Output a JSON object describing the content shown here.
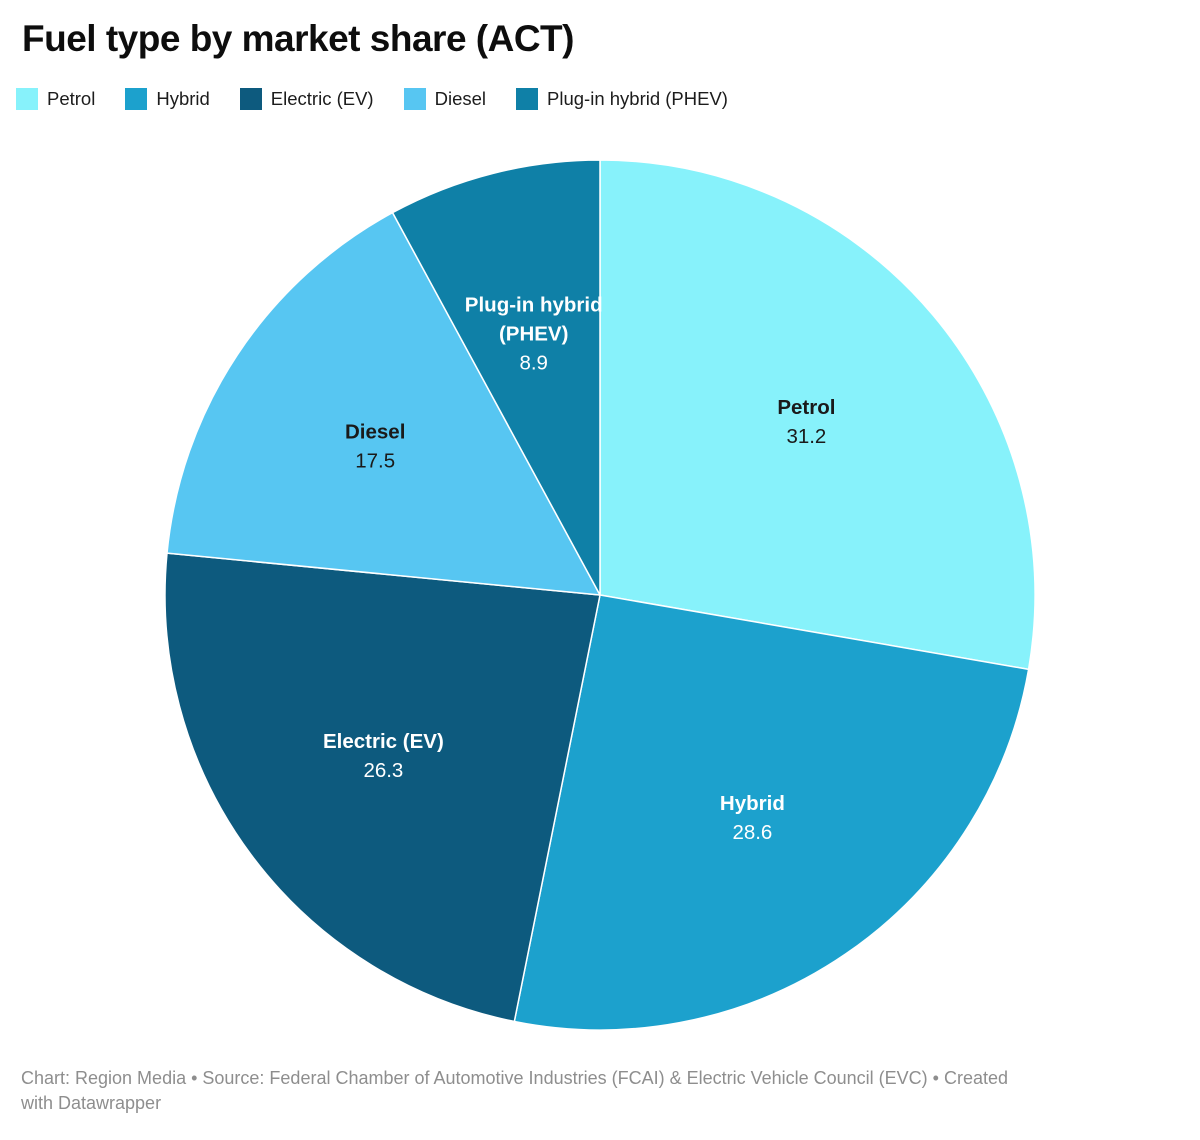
{
  "page": {
    "title": "Fuel type by market share (ACT)"
  },
  "chart_data": {
    "type": "pie",
    "title": "Fuel type by market share (ACT)",
    "legend_position": "top",
    "direction": "clockwise",
    "start_angle_deg": 0,
    "series": [
      {
        "label": "Petrol",
        "value": 31.2,
        "color": "#87F2FB",
        "label_lines": [
          "Petrol"
        ],
        "label_text_color": "#1a1a1a"
      },
      {
        "label": "Hybrid",
        "value": 28.6,
        "color": "#1CA1CD",
        "label_lines": [
          "Hybrid"
        ],
        "label_text_color": "#ffffff"
      },
      {
        "label": "Electric (EV)",
        "value": 26.3,
        "color": "#0D5A7E",
        "label_lines": [
          "Electric (EV)"
        ],
        "label_text_color": "#ffffff"
      },
      {
        "label": "Diesel",
        "value": 17.5,
        "color": "#57C6F2",
        "label_lines": [
          "Diesel"
        ],
        "label_text_color": "#1a1a1a"
      },
      {
        "label": "Plug-in hybrid (PHEV)",
        "value": 8.9,
        "color": "#0F80A7",
        "label_lines": [
          "Plug-in hybrid",
          "(PHEV)"
        ],
        "label_text_color": "#ffffff"
      }
    ]
  },
  "footer": {
    "line1": "Chart: Region Media • Source: Federal Chamber of Automotive Industries (FCAI) & Electric Vehicle Council (EVC) • Created",
    "line2": "with Datawrapper",
    "full_text": "Chart: Region Media • Source: Federal Chamber of Automotive Industries (FCAI) & Electric Vehicle Council (EVC) • Created with Datawrapper"
  }
}
